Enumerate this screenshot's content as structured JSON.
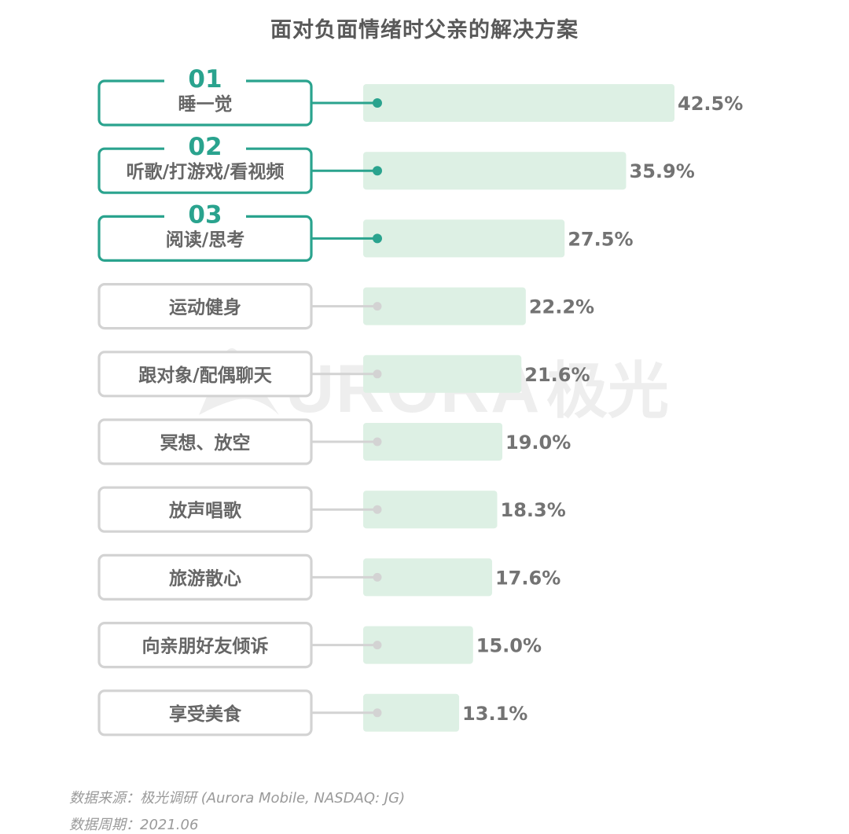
{
  "title": "面对负面情绪时父亲的解决方案",
  "watermark": {
    "text_latin": "URORA",
    "text_cn": "极光"
  },
  "footer": {
    "source": "数据来源：极光调研 (Aurora Mobile, NASDAQ: JG)",
    "period": "数据周期：2021.06"
  },
  "colors": {
    "accent": "#2aa38e",
    "muted": "#d3d3d3",
    "bar": "#ddf0e4",
    "text": "#666666",
    "value_text": "#737373"
  },
  "chart_data": {
    "type": "bar",
    "orientation": "horizontal",
    "title": "面对负面情绪时父亲的解决方案",
    "categories": [
      "睡一觉",
      "听歌/打游戏/看视频",
      "阅读/思考",
      "运动健身",
      "跟对象/配偶聊天",
      "冥想、放空",
      "放声唱歌",
      "旅游散心",
      "向亲朋好友倾诉",
      "享受美食"
    ],
    "values": [
      42.5,
      35.9,
      27.5,
      22.2,
      21.6,
      19.0,
      18.3,
      17.6,
      15.0,
      13.1
    ],
    "value_labels": [
      "42.5%",
      "35.9%",
      "27.5%",
      "22.2%",
      "21.6%",
      "19.0%",
      "18.3%",
      "17.6%",
      "15.0%",
      "13.1%"
    ],
    "rank_labels": [
      "01",
      "02",
      "03"
    ],
    "unit": "%",
    "xlim": [
      0,
      42.5
    ]
  }
}
